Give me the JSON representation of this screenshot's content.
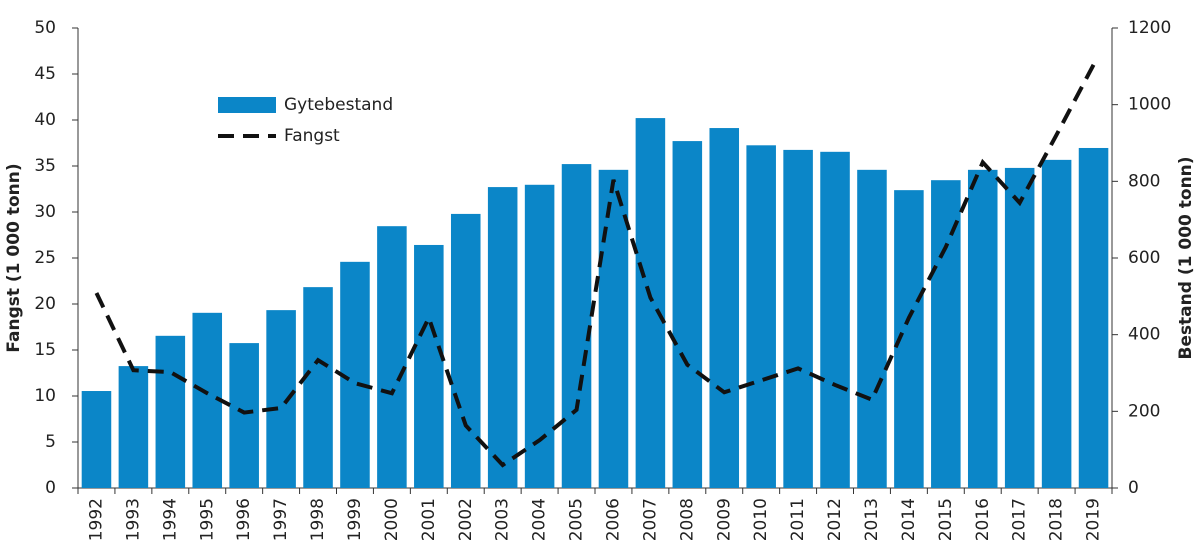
{
  "chart_data": {
    "type": "bar-line",
    "categories": [
      "1992",
      "1993",
      "1994",
      "1995",
      "1996",
      "1997",
      "1998",
      "1999",
      "2000",
      "2001",
      "2002",
      "2003",
      "2004",
      "2005",
      "2006",
      "2007",
      "2008",
      "2009",
      "2010",
      "2011",
      "2012",
      "2013",
      "2014",
      "2015",
      "2016",
      "2017",
      "2018",
      "2019"
    ],
    "series": [
      {
        "name": "Gytebestand",
        "type": "bar",
        "axis": "y2",
        "color": "#0b86c8",
        "values": [
          253,
          318,
          397,
          457,
          378,
          464,
          524,
          590,
          683,
          634,
          715,
          785,
          791,
          845,
          830,
          965,
          905,
          939,
          894,
          882,
          877,
          830,
          777,
          803,
          830,
          835,
          856,
          887
        ]
      },
      {
        "name": "Fangst",
        "type": "line",
        "axis": "y",
        "color": "#111111",
        "dashed": true,
        "values": [
          21.2,
          12.8,
          12.6,
          10.3,
          8.2,
          8.7,
          13.9,
          11.4,
          10.3,
          18.5,
          6.8,
          2.5,
          5.2,
          8.5,
          33.5,
          20.7,
          13.4,
          10.4,
          11.7,
          13.0,
          11.2,
          9.6,
          18.5,
          26.2,
          35.4,
          31.0,
          38.4,
          46.0
        ]
      }
    ],
    "y_label": "Fangst (1 000 tonn)",
    "y2_label": "Bestand (1 000 tonn)",
    "ylim": [
      0,
      50
    ],
    "yticks": [
      0,
      5,
      10,
      15,
      20,
      25,
      30,
      35,
      40,
      45,
      50
    ],
    "y2lim": [
      0,
      1200
    ],
    "y2ticks": [
      0,
      200,
      400,
      600,
      800,
      1000,
      1200
    ],
    "legend": "upper-left"
  }
}
